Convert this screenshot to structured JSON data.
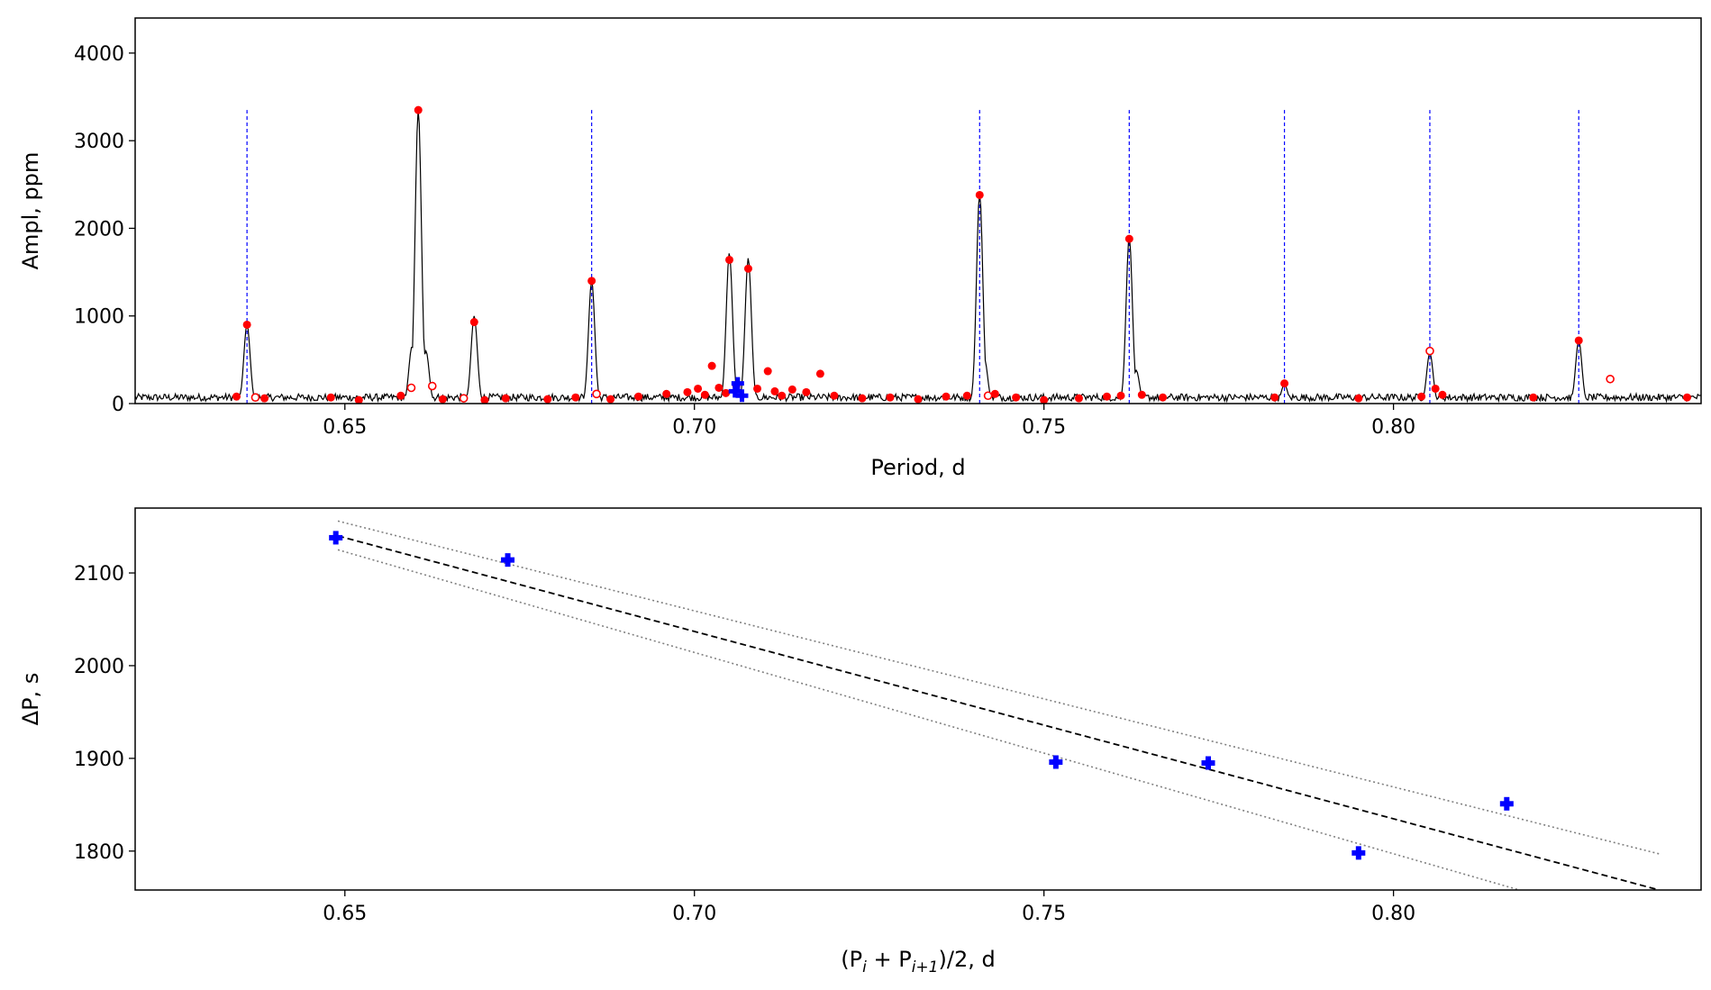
{
  "chart_data": [
    {
      "type": "line",
      "panel": "top",
      "xlabel": "Period, d",
      "ylabel": "Ampl, ppm",
      "xlim": [
        0.62,
        0.844
      ],
      "ylim": [
        0,
        4400
      ],
      "xticks": [
        0.65,
        0.7,
        0.75,
        0.8
      ],
      "xtick_labels": [
        "0.65",
        "0.70",
        "0.75",
        "0.80"
      ],
      "yticks": [
        0,
        1000,
        2000,
        3000,
        4000
      ],
      "ytick_labels": [
        "0",
        "1000",
        "2000",
        "3000",
        "4000"
      ],
      "colors": {
        "spectrum": "#000000",
        "peaks": "#ff0000",
        "mode_lines": "#0000ff",
        "selected": "#0000ff"
      },
      "noise_level": 70,
      "noise_amplitude": 60,
      "spectrum_peaks": [
        {
          "x": 0.636,
          "y": 900
        },
        {
          "x": 0.6605,
          "y": 3350
        },
        {
          "x": 0.6596,
          "y": 650
        },
        {
          "x": 0.6616,
          "y": 600
        },
        {
          "x": 0.6685,
          "y": 1000
        },
        {
          "x": 0.6853,
          "y": 1400
        },
        {
          "x": 0.705,
          "y": 1720
        },
        {
          "x": 0.7077,
          "y": 1660
        },
        {
          "x": 0.7408,
          "y": 2400
        },
        {
          "x": 0.7415,
          "y": 500
        },
        {
          "x": 0.7622,
          "y": 1900
        },
        {
          "x": 0.7632,
          "y": 380
        },
        {
          "x": 0.7844,
          "y": 220
        },
        {
          "x": 0.8052,
          "y": 580
        },
        {
          "x": 0.8265,
          "y": 720
        }
      ],
      "mode_lines": [
        0.636,
        0.6853,
        0.7408,
        0.7622,
        0.7844,
        0.8052,
        0.8265
      ],
      "mode_line_height": 3350,
      "detected_peaks_filled": [
        {
          "x": 0.636,
          "y": 900
        },
        {
          "x": 0.6605,
          "y": 3350
        },
        {
          "x": 0.6685,
          "y": 930
        },
        {
          "x": 0.6853,
          "y": 1400
        },
        {
          "x": 0.705,
          "y": 1640
        },
        {
          "x": 0.7077,
          "y": 1540
        },
        {
          "x": 0.7408,
          "y": 2380
        },
        {
          "x": 0.7622,
          "y": 1880
        },
        {
          "x": 0.8265,
          "y": 720
        },
        {
          "x": 0.7844,
          "y": 230
        },
        {
          "x": 0.7025,
          "y": 430
        },
        {
          "x": 0.7105,
          "y": 370
        },
        {
          "x": 0.718,
          "y": 340
        },
        {
          "x": 0.806,
          "y": 170
        },
        {
          "x": 0.6345,
          "y": 80
        },
        {
          "x": 0.6385,
          "y": 60
        },
        {
          "x": 0.648,
          "y": 70
        },
        {
          "x": 0.652,
          "y": 40
        },
        {
          "x": 0.658,
          "y": 90
        },
        {
          "x": 0.664,
          "y": 50
        },
        {
          "x": 0.67,
          "y": 40
        },
        {
          "x": 0.673,
          "y": 60
        },
        {
          "x": 0.679,
          "y": 50
        },
        {
          "x": 0.683,
          "y": 70
        },
        {
          "x": 0.688,
          "y": 50
        },
        {
          "x": 0.692,
          "y": 80
        },
        {
          "x": 0.696,
          "y": 110
        },
        {
          "x": 0.699,
          "y": 130
        },
        {
          "x": 0.7005,
          "y": 170
        },
        {
          "x": 0.7015,
          "y": 100
        },
        {
          "x": 0.7035,
          "y": 180
        },
        {
          "x": 0.7045,
          "y": 120
        },
        {
          "x": 0.706,
          "y": 200
        },
        {
          "x": 0.709,
          "y": 170
        },
        {
          "x": 0.7115,
          "y": 140
        },
        {
          "x": 0.7125,
          "y": 90
        },
        {
          "x": 0.714,
          "y": 160
        },
        {
          "x": 0.716,
          "y": 130
        },
        {
          "x": 0.72,
          "y": 90
        },
        {
          "x": 0.724,
          "y": 60
        },
        {
          "x": 0.728,
          "y": 70
        },
        {
          "x": 0.732,
          "y": 50
        },
        {
          "x": 0.736,
          "y": 80
        },
        {
          "x": 0.739,
          "y": 90
        },
        {
          "x": 0.743,
          "y": 110
        },
        {
          "x": 0.746,
          "y": 70
        },
        {
          "x": 0.75,
          "y": 40
        },
        {
          "x": 0.755,
          "y": 60
        },
        {
          "x": 0.759,
          "y": 80
        },
        {
          "x": 0.761,
          "y": 90
        },
        {
          "x": 0.764,
          "y": 100
        },
        {
          "x": 0.767,
          "y": 70
        },
        {
          "x": 0.783,
          "y": 70
        },
        {
          "x": 0.795,
          "y": 60
        },
        {
          "x": 0.804,
          "y": 80
        },
        {
          "x": 0.807,
          "y": 100
        },
        {
          "x": 0.82,
          "y": 70
        },
        {
          "x": 0.842,
          "y": 70
        }
      ],
      "detected_peaks_open": [
        {
          "x": 0.6372,
          "y": 70
        },
        {
          "x": 0.6595,
          "y": 180
        },
        {
          "x": 0.6625,
          "y": 200
        },
        {
          "x": 0.667,
          "y": 60
        },
        {
          "x": 0.686,
          "y": 110
        },
        {
          "x": 0.742,
          "y": 90
        },
        {
          "x": 0.8052,
          "y": 600
        },
        {
          "x": 0.831,
          "y": 280
        }
      ],
      "selected_peaks": [
        {
          "x": 0.7062,
          "y": 230
        },
        {
          "x": 0.7068,
          "y": 90
        },
        {
          "x": 0.7058,
          "y": 140
        }
      ]
    },
    {
      "type": "scatter",
      "panel": "bottom",
      "xlabel": "(P_i + P_{i+1})/2, d",
      "xlabel_main": "(P",
      "xlabel_sub1": "i",
      "xlabel_plus": " + P",
      "xlabel_sub2": "i+1",
      "xlabel_tail": ")/2, d",
      "ylabel": "ΔP, s",
      "xlim": [
        0.62,
        0.844
      ],
      "ylim": [
        1758,
        2170
      ],
      "xticks": [
        0.65,
        0.7,
        0.75,
        0.8
      ],
      "xtick_labels": [
        "0.65",
        "0.70",
        "0.75",
        "0.80"
      ],
      "yticks": [
        1800,
        1900,
        2000,
        2100
      ],
      "ytick_labels": [
        "1800",
        "1900",
        "2000",
        "2100"
      ],
      "colors": {
        "points": "#0000ff",
        "fit": "#000000",
        "bounds": "#808080"
      },
      "points": [
        {
          "x": 0.6487,
          "y": 2138
        },
        {
          "x": 0.6733,
          "y": 2114
        },
        {
          "x": 0.7517,
          "y": 1896
        },
        {
          "x": 0.7735,
          "y": 1895
        },
        {
          "x": 0.795,
          "y": 1798
        },
        {
          "x": 0.8162,
          "y": 1851
        }
      ],
      "fit_line": {
        "x": [
          0.649,
          0.838
        ],
        "y": [
          2140,
          1758
        ]
      },
      "upper_bound": {
        "x": [
          0.649,
          0.838
        ],
        "y": [
          2156,
          1797
        ]
      },
      "lower_bound": {
        "x": [
          0.649,
          0.818
        ],
        "y": [
          2125,
          1758
        ]
      }
    }
  ]
}
